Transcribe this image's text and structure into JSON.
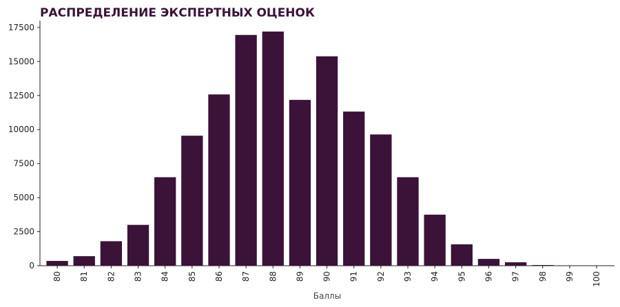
{
  "chart_data": {
    "type": "bar",
    "title": "РАСПРЕДЕЛЕНИЕ ЭКСПЕРТНЫХ ОЦЕНОК",
    "x_label": "Баллы",
    "categories": [
      "80",
      "81",
      "82",
      "83",
      "84",
      "85",
      "86",
      "87",
      "88",
      "89",
      "90",
      "91",
      "92",
      "93",
      "94",
      "95",
      "96",
      "97",
      "98",
      "99",
      "100"
    ],
    "values": [
      350,
      700,
      1800,
      3000,
      6500,
      9550,
      12580,
      16950,
      17200,
      12180,
      15380,
      11320,
      9640,
      6500,
      3750,
      1570,
      500,
      250,
      50,
      10,
      2
    ],
    "color": "#3b1238",
    "title_color": "#3b1238",
    "ylim": [
      0,
      18000
    ],
    "yticks": [
      0,
      2500,
      5000,
      7500,
      10000,
      12500,
      15000,
      17500
    ],
    "grid": false
  }
}
